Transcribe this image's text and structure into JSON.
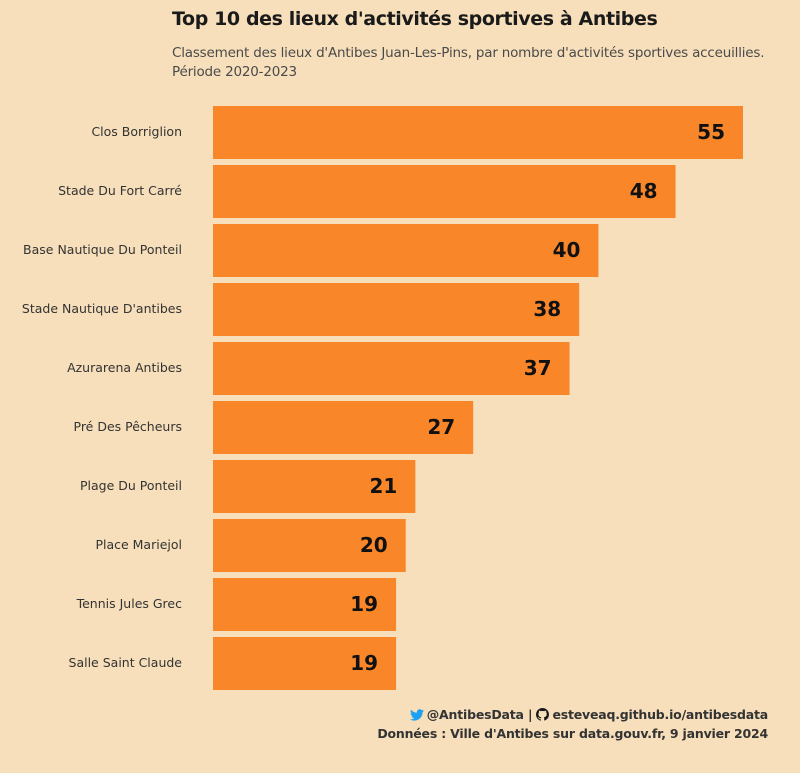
{
  "title": "Top 10 des lieux d'activités sportives à Antibes",
  "subtitle_line1": "Classement des lieux d'Antibes Juan-Les-Pins, par nombre d'activités sportives acceuillies.",
  "subtitle_line2": "Période 2020-2023",
  "caption": {
    "twitter_handle": "@AntibesData",
    "separator": "|",
    "github_url": "esteveaq.github.io/antibesdata",
    "source": "Données : Ville d'Antibes sur data.gouv.fr, 9 janvier 2024",
    "twitter_color": "#1da1f2"
  },
  "colors": {
    "bar": "#f98729",
    "background": "#f7dfbb"
  },
  "chart_data": {
    "type": "bar",
    "orientation": "horizontal",
    "categories": [
      "Clos Borriglion",
      "Stade Du Fort Carré",
      "Base Nautique Du Ponteil",
      "Stade Nautique D'antibes",
      "Azurarena Antibes",
      "Pré Des Pêcheurs",
      "Plage Du Ponteil",
      "Place Mariejol",
      "Tennis Jules Grec",
      "Salle Saint Claude"
    ],
    "values": [
      55,
      48,
      40,
      38,
      37,
      27,
      21,
      20,
      19,
      19
    ],
    "data_labels": true,
    "grid": false,
    "legend": "none"
  }
}
